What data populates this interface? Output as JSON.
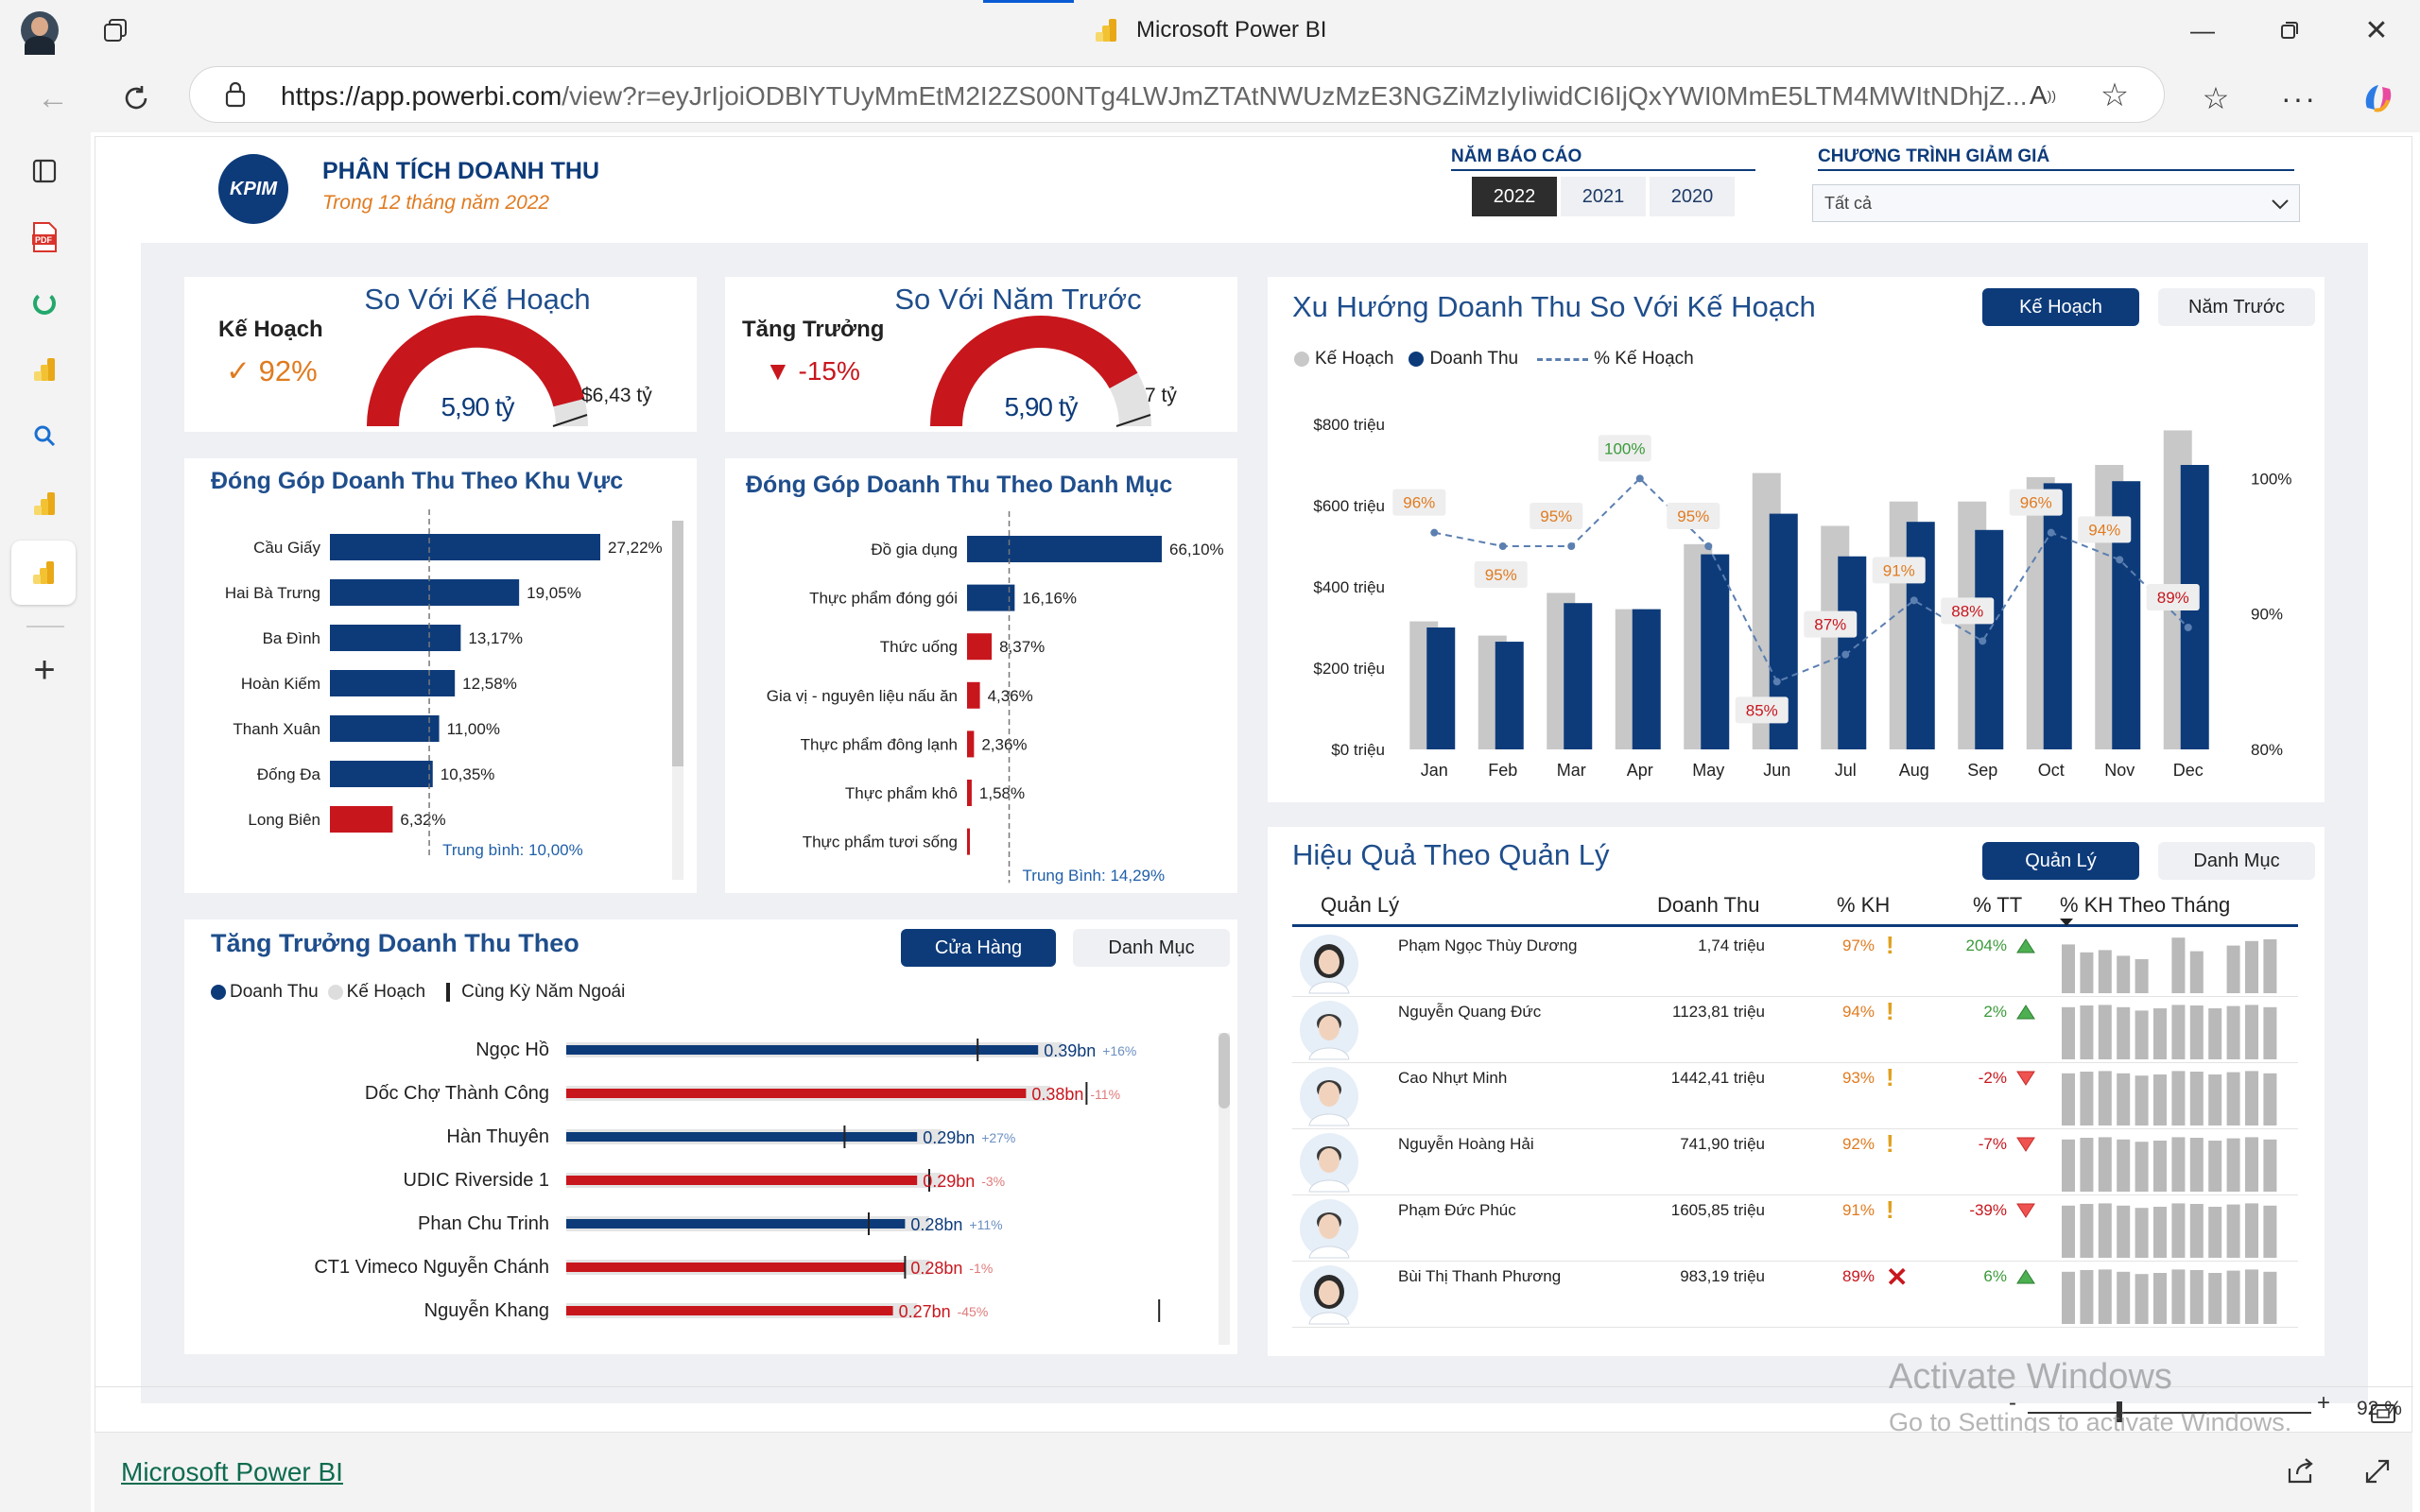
{
  "browser": {
    "tab_title": "Microsoft Power BI",
    "url": "https://app.powerbi.com/view?r=eyJrIjoiODBlYTUyMmEtM2I2ZS00NTg4LWJmZTAtNWUzMzE3NGZiMzIyIiwidCI6IjQxYWI0MmE5LTM4MWItNDhjZ...",
    "url_host": "https://app.powerbi.com",
    "url_rest": "/view?r=eyJrIjoiODBlYTUyMmEtM2I2ZS00NTg4LWJmZTAtNWUzMzE3NGZiMzIyIiwidCI6IjQxYWI0MmE5LTM4MWItNDhjZ..."
  },
  "report": {
    "logo_text": "KPIM",
    "title": "PHÂN TÍCH DOANH THU",
    "subtitle": "Trong 12 tháng năm 2022",
    "year_label": "NĂM BÁO CÁO",
    "years": [
      "2022",
      "2021",
      "2020"
    ],
    "promo_label": "CHƯƠNG TRÌNH GIẢM GIÁ",
    "promo_value": "Tất cả"
  },
  "kpi_plan": {
    "title": "So Với Kế Hoạch",
    "label": "Kế Hoạch",
    "check": "✓",
    "pct": "92%",
    "value": "5,90 tỷ",
    "target": "$6,43 tỷ",
    "fraction": 0.92
  },
  "kpi_prev": {
    "title": "So Với Năm Trước",
    "label": "Tăng Trưởng",
    "arrow": "▼",
    "pct": "-15%",
    "value": "5,90 tỷ",
    "target": "7 tỷ",
    "fraction": 0.84
  },
  "region": {
    "title": "Đóng Góp Doanh Thu Theo Khu Vực",
    "avg_label": "Trung bình: 10,00%",
    "avg": 10.0,
    "max": 27.22,
    "items": [
      {
        "name": "Cầu Giấy",
        "value": 27.22,
        "label": "27,22%",
        "red": false
      },
      {
        "name": "Hai Bà Trưng",
        "value": 19.05,
        "label": "19,05%",
        "red": false
      },
      {
        "name": "Ba Đình",
        "value": 13.17,
        "label": "13,17%",
        "red": false
      },
      {
        "name": "Hoàn Kiếm",
        "value": 12.58,
        "label": "12,58%",
        "red": false
      },
      {
        "name": "Thanh Xuân",
        "value": 11.0,
        "label": "11,00%",
        "red": false
      },
      {
        "name": "Đống Đa",
        "value": 10.35,
        "label": "10,35%",
        "red": false
      },
      {
        "name": "Long Biên",
        "value": 6.32,
        "label": "6,32%",
        "red": true
      }
    ]
  },
  "category": {
    "title": "Đóng Góp Doanh Thu Theo Danh Mục",
    "avg_label": "Trung Bình: 14,29%",
    "avg": 14.29,
    "max": 66.1,
    "items": [
      {
        "name": "Đồ gia dụng",
        "value": 66.1,
        "label": "66,10%",
        "red": false
      },
      {
        "name": "Thực phẩm đóng gói",
        "value": 16.16,
        "label": "16,16%",
        "red": false
      },
      {
        "name": "Thức uống",
        "value": 8.37,
        "label": "8,37%",
        "red": true
      },
      {
        "name": "Gia vị - nguyên liệu nấu ăn",
        "value": 4.36,
        "label": "4,36%",
        "red": true
      },
      {
        "name": "Thực phẩm đông lạnh",
        "value": 2.36,
        "label": "2,36%",
        "red": true
      },
      {
        "name": "Thực phẩm khô",
        "value": 1.58,
        "label": "1,58%",
        "red": true
      },
      {
        "name": "Thực phẩm tươi sống",
        "value": 0.9,
        "label": "",
        "red": true
      }
    ]
  },
  "trend": {
    "title": "Xu Hướng Doanh Thu So Với Kế Hoạch",
    "btn_plan": "Kế Hoạch",
    "btn_prev": "Năm Trước",
    "legend_plan": "Kế Hoạch",
    "legend_rev": "Doanh Thu",
    "legend_pct": "% Kế Hoạch",
    "y_ticks": [
      "$800 triệu",
      "$600 triệu",
      "$400 triệu",
      "$200 triệu",
      "$0 triệu"
    ],
    "y2_ticks": [
      "100%",
      "90%",
      "80%"
    ]
  },
  "chart_data": {
    "type": "bar",
    "categories": [
      "Jan",
      "Feb",
      "Mar",
      "Apr",
      "May",
      "Jun",
      "Jul",
      "Aug",
      "Sep",
      "Oct",
      "Nov",
      "Dec"
    ],
    "series": [
      {
        "name": "Kế Hoạch",
        "values": [
          315,
          280,
          385,
          345,
          505,
          680,
          550,
          610,
          610,
          670,
          700,
          785
        ]
      },
      {
        "name": "Doanh Thu",
        "values": [
          300,
          265,
          360,
          345,
          480,
          580,
          475,
          560,
          540,
          655,
          660,
          700
        ]
      },
      {
        "name": "% Kế Hoạch",
        "values": [
          96,
          95,
          95,
          100,
          95,
          85,
          87,
          91,
          88,
          96,
          94,
          89
        ],
        "labels": [
          "96%",
          "95%",
          "95%",
          "100%",
          "95%",
          "85%",
          "87%",
          "91%",
          "88%",
          "96%",
          "94%",
          "89%"
        ]
      }
    ],
    "ylim": [
      0,
      800
    ],
    "y2lim": [
      80,
      104
    ]
  },
  "growth": {
    "title": "Tăng Trưởng Doanh Thu Theo",
    "btn_store": "Cửa Hàng",
    "btn_cat": "Danh Mục",
    "legend_rev": "Doanh Thu",
    "legend_plan": "Kế Hoạch",
    "legend_prev": "Cùng Kỳ Năm Ngoái",
    "items": [
      {
        "name": "Ngọc Hồ",
        "rev": 0.39,
        "label": "0.39bn",
        "delta": "+16%",
        "prev": 0.34,
        "red": false
      },
      {
        "name": "Dốc Chợ Thành Công",
        "rev": 0.38,
        "label": "0.38bn",
        "delta": "-11%",
        "prev": 0.43,
        "red": true
      },
      {
        "name": "Hàn Thuyên",
        "rev": 0.29,
        "label": "0.29bn",
        "delta": "+27%",
        "prev": 0.23,
        "red": false
      },
      {
        "name": "UDIC Riverside 1",
        "rev": 0.29,
        "label": "0.29bn",
        "delta": "-3%",
        "prev": 0.3,
        "red": true
      },
      {
        "name": "Phan Chu Trinh",
        "rev": 0.28,
        "label": "0.28bn",
        "delta": "+11%",
        "prev": 0.25,
        "red": false
      },
      {
        "name": "CT1 Vimeco Nguyễn Chánh",
        "rev": 0.28,
        "label": "0.28bn",
        "delta": "-1%",
        "prev": 0.28,
        "red": true
      },
      {
        "name": "Nguyễn Khang",
        "rev": 0.27,
        "label": "0.27bn",
        "delta": "-45%",
        "prev": 0.49,
        "red": true
      }
    ],
    "max": 0.5
  },
  "managers": {
    "title": "Hiệu Quả Theo Quản Lý",
    "btn_mgr": "Quản Lý",
    "btn_cat": "Danh Mục",
    "headers": [
      "Quản Lý",
      "Doanh Thu",
      "% KH",
      "% TT",
      "% KH Theo Tháng"
    ],
    "rows": [
      {
        "name": "Phạm Ngọc Thùy Dương",
        "rev": "1,74 triệu",
        "kh": "97%",
        "kh_icon": "!",
        "tt": "204%",
        "tt_up": true,
        "female": true,
        "spark": [
          0.86,
          0.72,
          0.76,
          0.66,
          0.6,
          0.0,
          0.98,
          0.74,
          0.0,
          0.84,
          0.92,
          0.95
        ]
      },
      {
        "name": "Nguyễn Quang Đức",
        "rev": "1123,81 triệu",
        "kh": "94%",
        "kh_icon": "!",
        "tt": "2%",
        "tt_up": true,
        "female": false,
        "spark": [
          0.92,
          0.95,
          0.96,
          0.92,
          0.86,
          0.9,
          0.96,
          0.95,
          0.9,
          0.94,
          0.96,
          0.92
        ]
      },
      {
        "name": "Cao Nhựt Minh",
        "rev": "1442,41 triệu",
        "kh": "93%",
        "kh_icon": "!",
        "tt": "-2%",
        "tt_up": false,
        "female": false,
        "spark": [
          0.92,
          0.95,
          0.96,
          0.92,
          0.88,
          0.9,
          0.96,
          0.95,
          0.9,
          0.94,
          0.96,
          0.92
        ]
      },
      {
        "name": "Nguyễn Hoàng Hải",
        "rev": "741,90 triệu",
        "kh": "92%",
        "kh_icon": "!",
        "tt": "-7%",
        "tt_up": false,
        "female": false,
        "spark": [
          0.92,
          0.95,
          0.96,
          0.92,
          0.88,
          0.9,
          0.96,
          0.95,
          0.9,
          0.94,
          0.96,
          0.92
        ]
      },
      {
        "name": "Phạm Đức Phúc",
        "rev": "1605,85 triệu",
        "kh": "91%",
        "kh_icon": "!",
        "tt": "-39%",
        "tt_up": false,
        "female": false,
        "spark": [
          0.92,
          0.95,
          0.96,
          0.92,
          0.88,
          0.9,
          0.96,
          0.95,
          0.9,
          0.94,
          0.96,
          0.92
        ]
      },
      {
        "name": "Bùi Thị Thanh Phương",
        "rev": "983,19 triệu",
        "kh": "89%",
        "kh_icon": "✕",
        "tt": "6%",
        "tt_up": true,
        "female": true,
        "spark": [
          0.92,
          0.95,
          0.96,
          0.92,
          0.88,
          0.9,
          0.96,
          0.95,
          0.9,
          0.94,
          0.96,
          0.92
        ]
      }
    ]
  },
  "footer": {
    "link": "Microsoft Power BI",
    "zoom": "92 %",
    "zoom_minus": "-",
    "zoom_plus": "+"
  },
  "watermark": {
    "line1": "Activate Windows",
    "line2": "Go to Settings to activate Windows."
  },
  "colors": {
    "navy": "#0d3b7a",
    "red": "#c8161d",
    "gray": "#c8c8c8",
    "orange": "#e07b20",
    "green": "#3a9a3a"
  }
}
